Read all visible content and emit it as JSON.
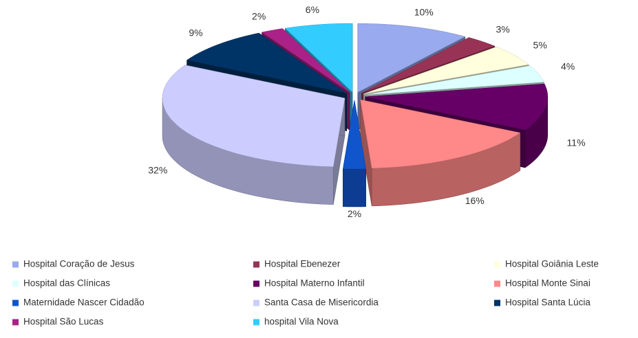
{
  "chart_data": {
    "type": "pie",
    "categories": [
      "Hospital Coração de Jesus",
      "Hospital Ebenezer",
      "Hospital Goiânia Leste",
      "Hospital das Clínicas",
      "Hospital Materno Infantil",
      "Hospital Monte Sinai",
      "Maternidade Nascer Cidadão",
      "Santa Casa de Misericordia",
      "Hospital Santa Lúcia",
      "Hospital São Lucas",
      "hospital Vila Nova"
    ],
    "values": [
      10,
      3,
      5,
      4,
      11,
      16,
      2,
      32,
      9,
      2,
      6
    ],
    "value_labels": [
      "10%",
      "3%",
      "5%",
      "4%",
      "11%",
      "16%",
      "2%",
      "32%",
      "9%",
      "2%",
      "6%"
    ],
    "colors": [
      "#99aaee",
      "#993355",
      "#ffffdd",
      "#ddffff",
      "#660066",
      "#ff8888",
      "#1155cc",
      "#ccccff",
      "#003366",
      "#aa2288",
      "#33ccff"
    ],
    "legend": "bottom"
  }
}
